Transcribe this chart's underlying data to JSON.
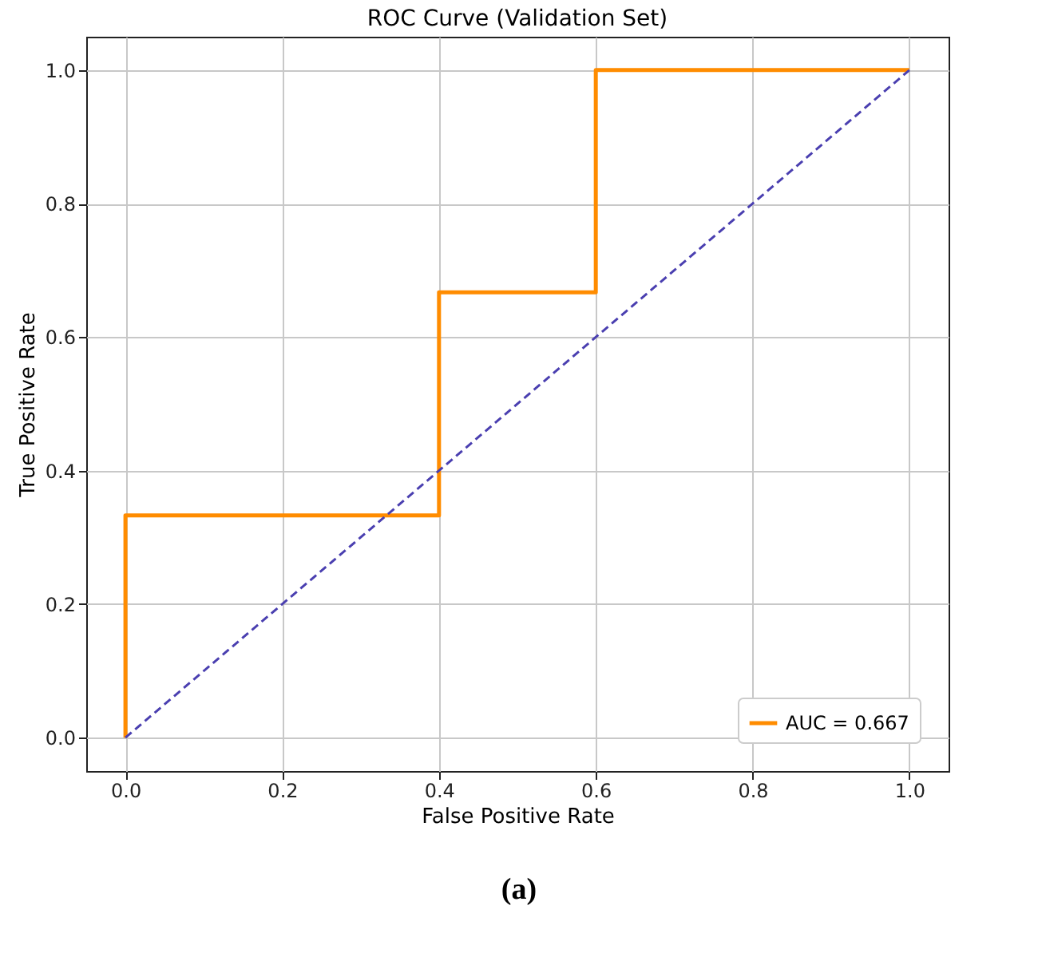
{
  "chart_data": {
    "type": "line",
    "title": "ROC Curve (Validation Set)",
    "xlabel": "False Positive Rate",
    "ylabel": "True Positive Rate",
    "series": [
      {
        "name": "AUC = 0.667",
        "color": "#ff8c00",
        "line_style": "solid",
        "x": [
          0,
          0,
          0.4,
          0.4,
          0.6,
          0.6,
          1
        ],
        "values": [
          0,
          0.333,
          0.333,
          0.667,
          0.667,
          1,
          1
        ]
      },
      {
        "color": "#4a3fb0",
        "line_style": "dashed",
        "x": [
          0,
          1
        ],
        "values": [
          0,
          1
        ]
      }
    ],
    "xlim": [
      -0.05,
      1.05
    ],
    "ylim": [
      -0.05,
      1.05
    ],
    "xticks": [
      {
        "value": 0,
        "label": "0.0"
      },
      {
        "value": 0.2,
        "label": "0.2"
      },
      {
        "value": 0.4,
        "label": "0.4"
      },
      {
        "value": 0.6,
        "label": "0.6"
      },
      {
        "value": 0.8,
        "label": "0.8"
      },
      {
        "value": 1,
        "label": "1.0"
      }
    ],
    "yticks": [
      {
        "value": 0,
        "label": "0.0"
      },
      {
        "value": 0.2,
        "label": "0.2"
      },
      {
        "value": 0.4,
        "label": "0.4"
      },
      {
        "value": 0.6,
        "label": "0.6"
      },
      {
        "value": 0.8,
        "label": "0.8"
      },
      {
        "value": 1,
        "label": "1.0"
      }
    ],
    "grid": true,
    "legend": "bottom right",
    "marker": "none",
    "annotations": [
      "(a)"
    ]
  }
}
